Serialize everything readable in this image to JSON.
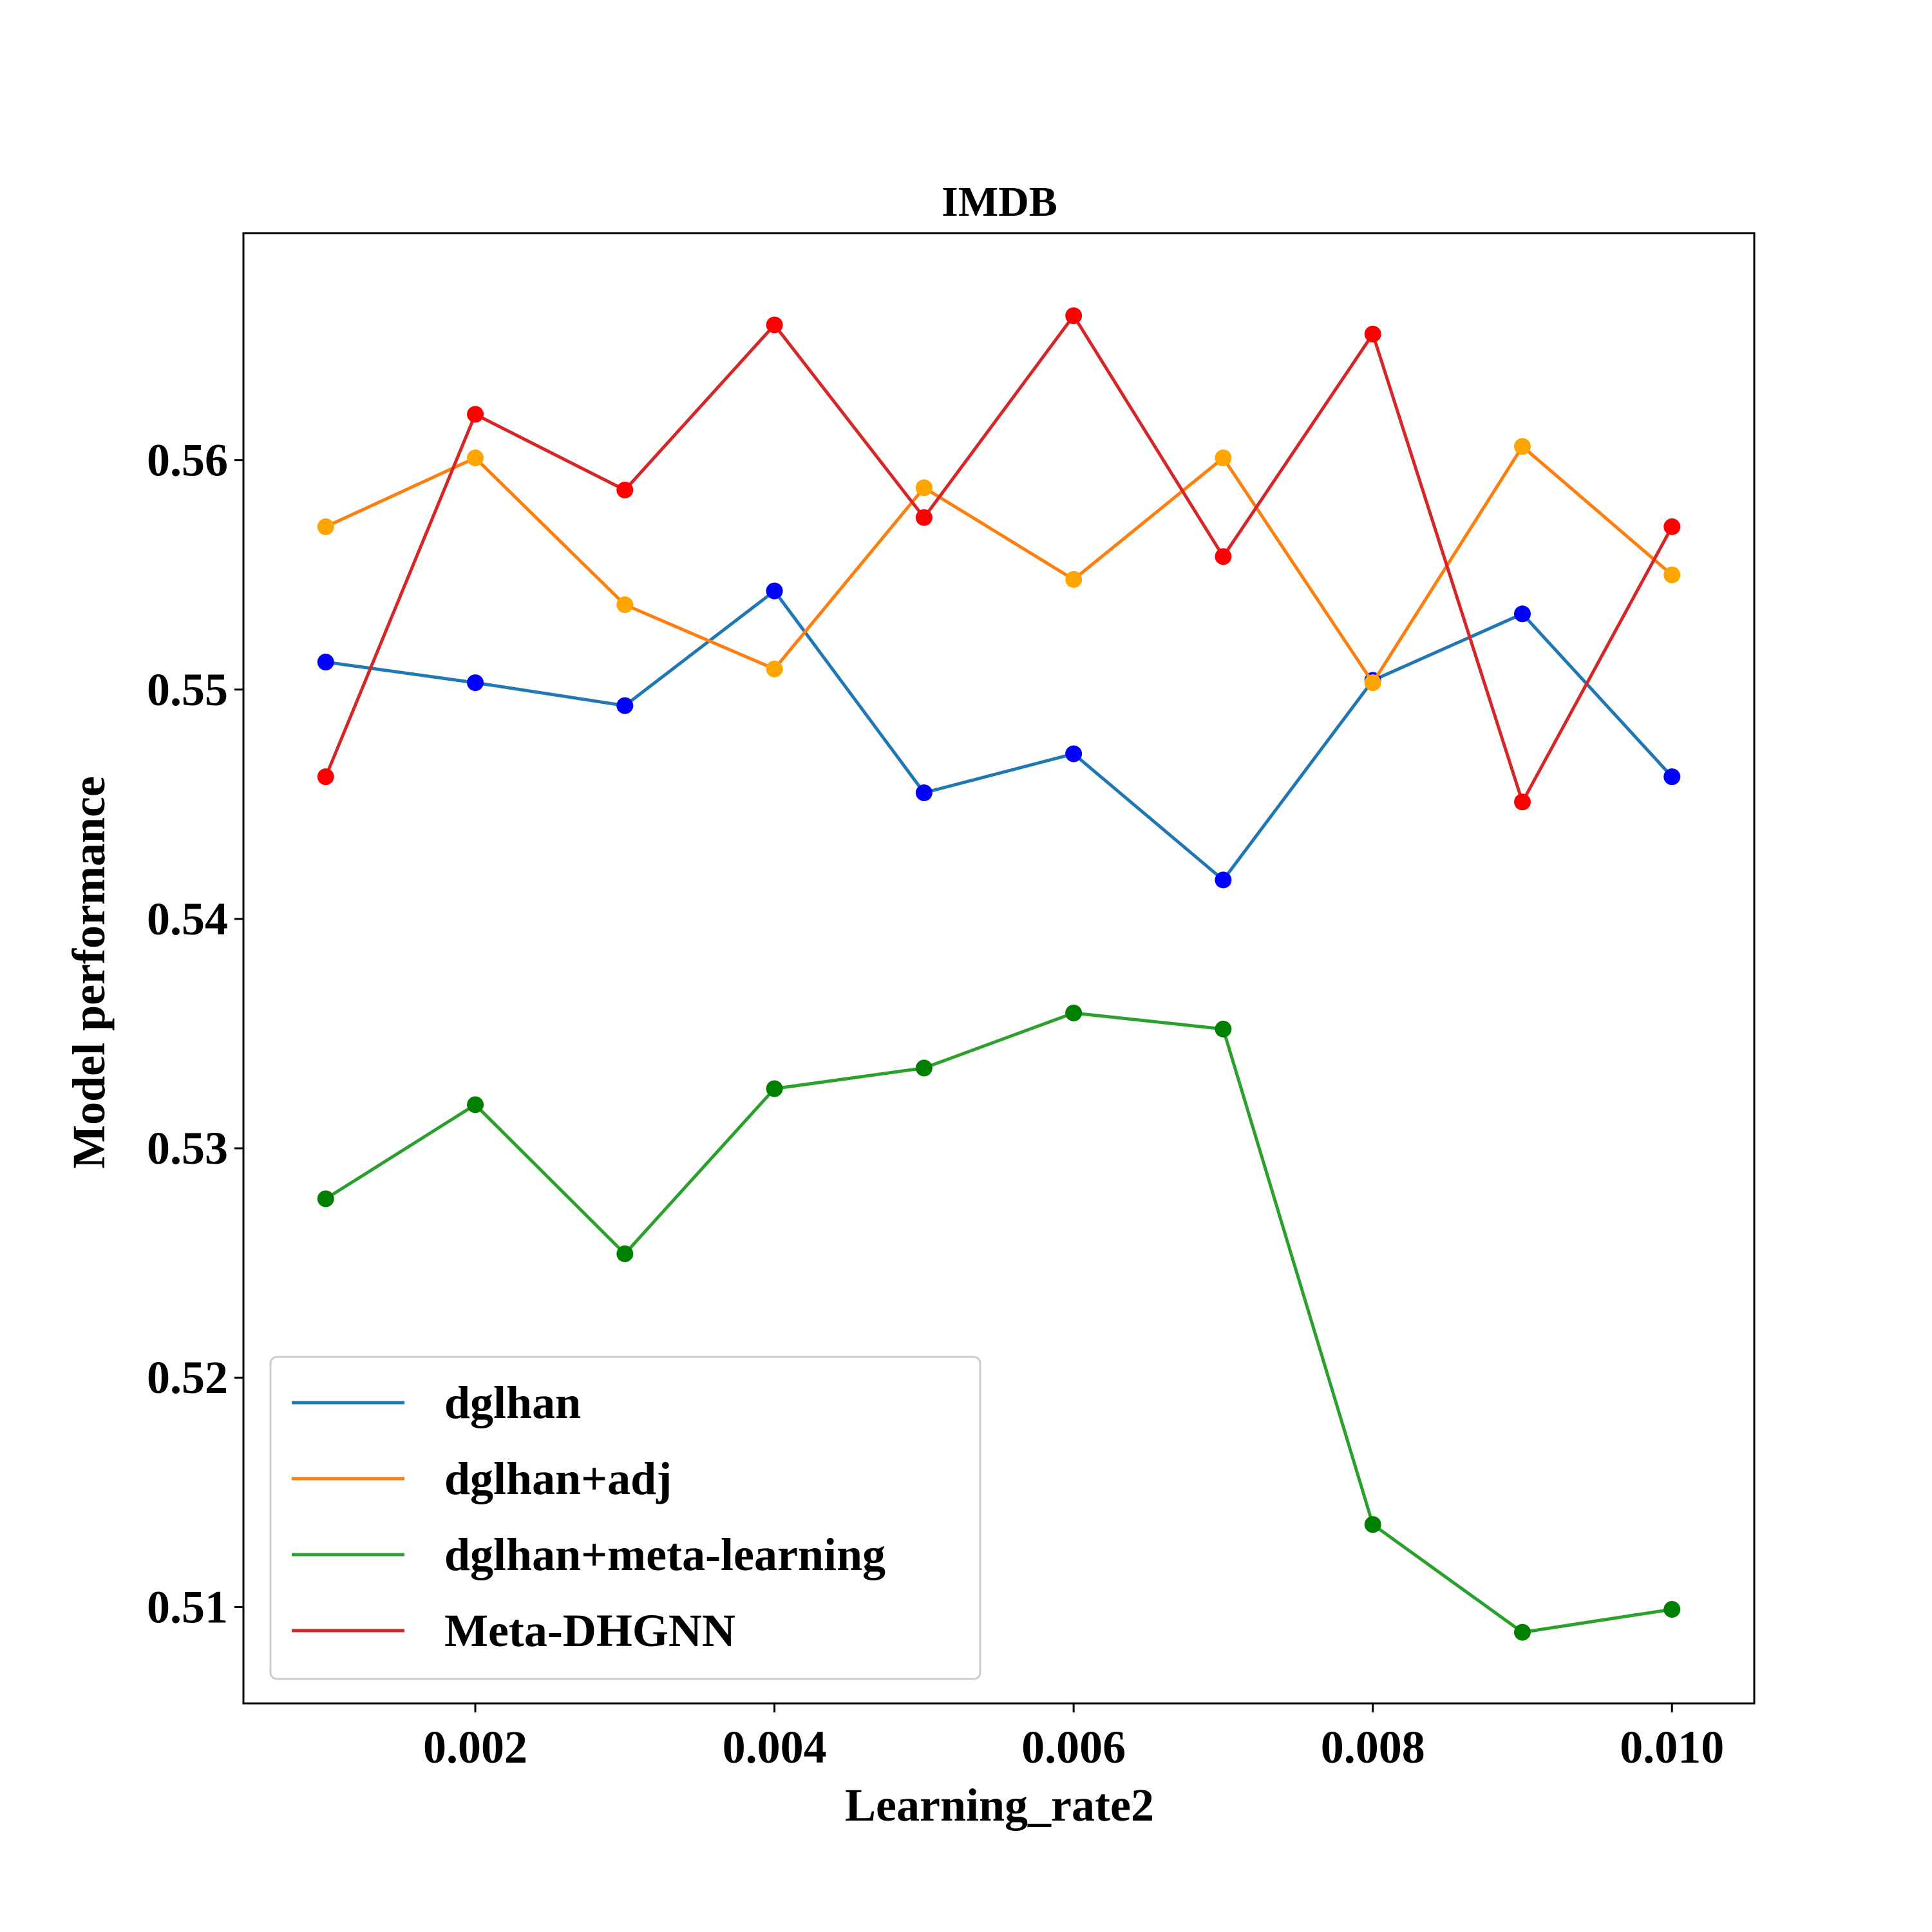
{
  "chart_data": {
    "type": "line",
    "title": "IMDB",
    "xlabel": "Learning_rate2",
    "ylabel": "Model performance",
    "xlim": [
      0.00045,
      0.01055
    ],
    "ylim": [
      0.5058,
      0.5699
    ],
    "xticks": [
      0.002,
      0.004,
      0.006,
      0.008,
      0.01
    ],
    "xtick_labels": [
      "0.002",
      "0.004",
      "0.006",
      "0.008",
      "0.010"
    ],
    "yticks": [
      0.51,
      0.52,
      0.53,
      0.54,
      0.55,
      0.56
    ],
    "ytick_labels": [
      "0.51",
      "0.52",
      "0.53",
      "0.54",
      "0.55",
      "0.56"
    ],
    "grid": false,
    "legend_position": "lower-left",
    "x": [
      0.001,
      0.002,
      0.003,
      0.004,
      0.005,
      0.006,
      0.007,
      0.008,
      0.009,
      0.01
    ],
    "series": [
      {
        "name": "dglhan",
        "color": "#1f77b4",
        "marker_color": "#0000ff",
        "values": [
          0.5512,
          0.5503,
          0.5493,
          0.5543,
          0.5455,
          0.5472,
          0.5417,
          0.5504,
          0.5533,
          0.5462
        ]
      },
      {
        "name": "dglhan+adj",
        "color": "#ff7f0e",
        "marker_color": "#ffa500",
        "values": [
          0.5571,
          0.5601,
          0.5537,
          0.5509,
          0.5588,
          0.5548,
          0.5601,
          0.5503,
          0.5606,
          0.555
        ]
      },
      {
        "name": "dglhan+meta-learning",
        "color": "#2ca02c",
        "marker_color": "#008000",
        "values": [
          0.5278,
          0.5319,
          0.5254,
          0.5326,
          0.5335,
          0.5359,
          0.5352,
          0.5136,
          0.5089,
          0.5099
        ]
      },
      {
        "name": "Meta-DHGNN",
        "color": "#d62728",
        "marker_color": "#ff0000",
        "values": [
          0.5462,
          0.562,
          0.5587,
          0.5659,
          0.5575,
          0.5663,
          0.5558,
          0.5655,
          0.5451,
          0.5571
        ]
      }
    ]
  }
}
